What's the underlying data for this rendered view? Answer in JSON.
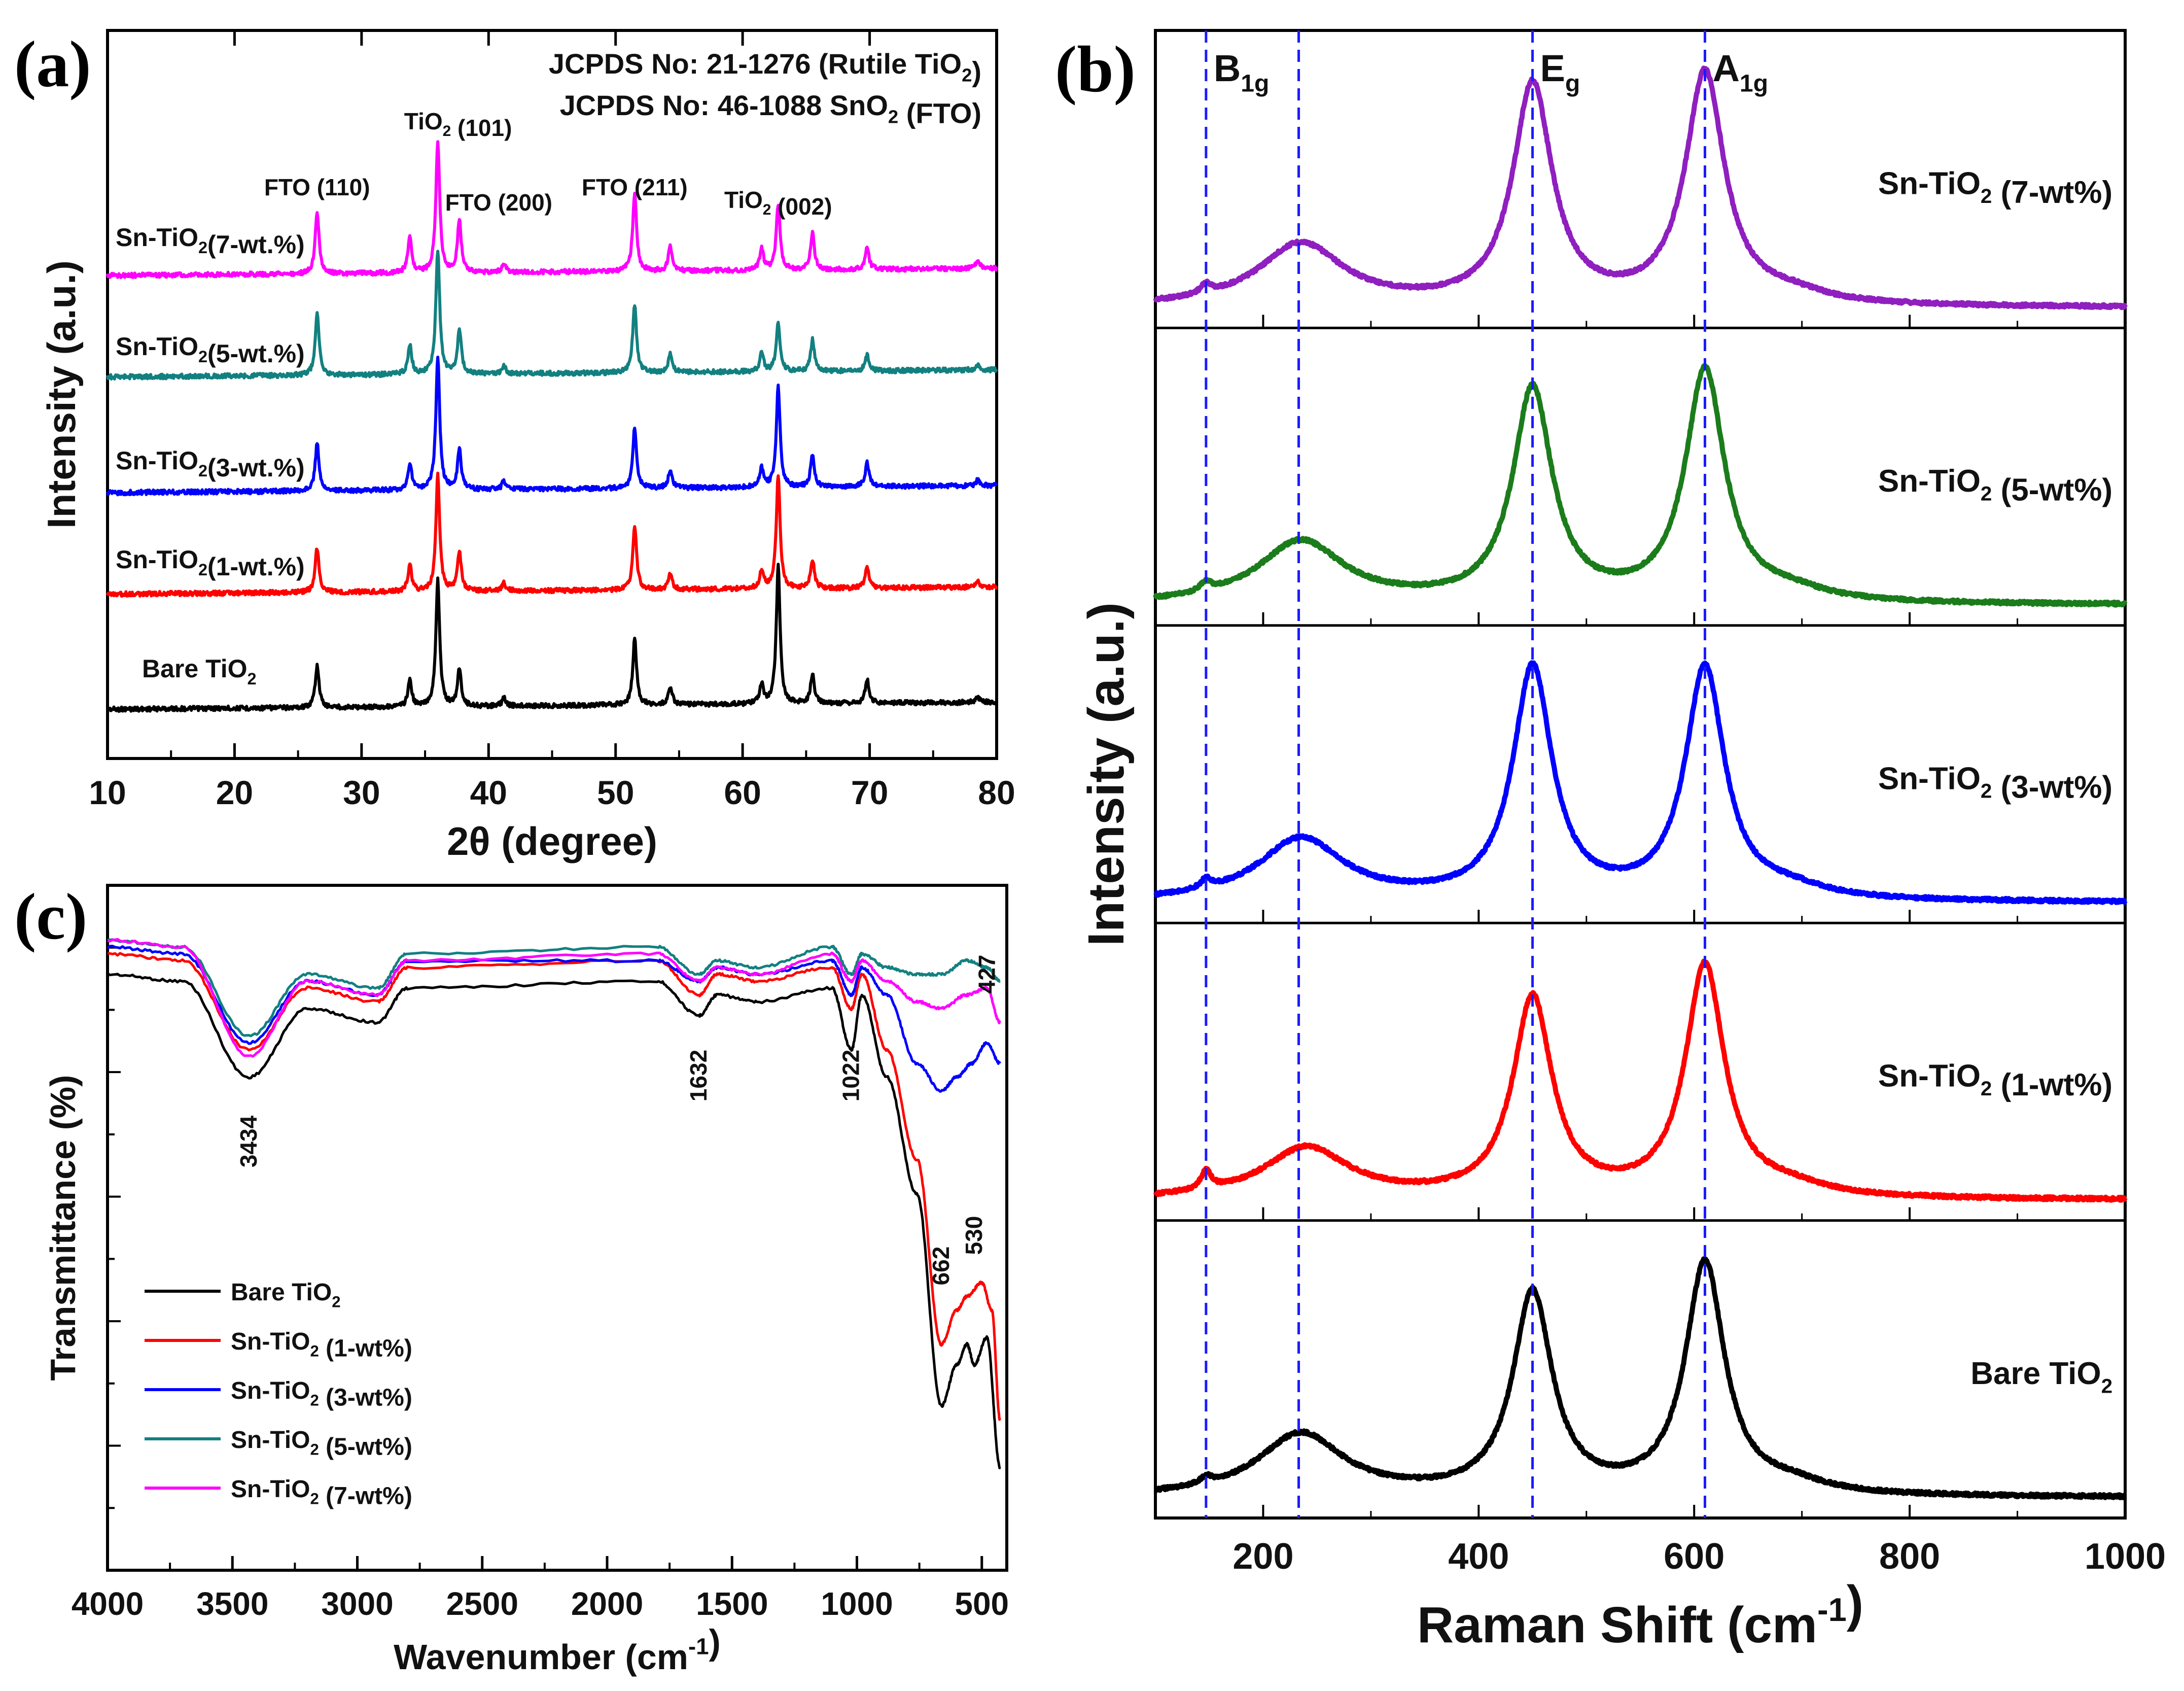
{
  "chart_data": [
    {
      "panel": "(a)",
      "type": "line",
      "xlabel": "2θ (degree)",
      "ylabel": "Intensity (a.u.)",
      "xlim": [
        10,
        80
      ],
      "xticks": [
        10,
        20,
        30,
        40,
        50,
        60,
        70,
        80
      ],
      "yticks_visible": false,
      "header_lines": [
        {
          "main": "JCPDS No: 21-1276 (Rutile TiO",
          "sub": "2",
          "tail": ")"
        },
        {
          "main": "JCPDS No: 46-1088 SnO",
          "sub": "2",
          "tail": " (FTO)"
        }
      ],
      "peak_labels": [
        {
          "main": "FTO (110)",
          "sub": "",
          "tail": "",
          "x": 26.5
        },
        {
          "main": "TiO",
          "sub": "2",
          "tail": " (101)",
          "x": 36.0
        },
        {
          "main": "FTO (200)",
          "sub": "",
          "tail": "",
          "x": 37.8
        },
        {
          "main": "FTO (211)",
          "sub": "",
          "tail": "",
          "x": 51.5
        },
        {
          "main": "TiO",
          "sub": "2",
          "tail": " (002)",
          "x": 62.8
        }
      ],
      "peak_positions": [
        26.5,
        33.8,
        36.0,
        37.7,
        41.2,
        51.5,
        54.3,
        61.5,
        62.8,
        65.5,
        69.8,
        78.5
      ],
      "series": [
        {
          "name": "Bare TiO2",
          "label_main": "Bare TiO",
          "label_sub": "2",
          "label_tail": "",
          "color": "#000000",
          "peak_heights": [
            0.16,
            0.1,
            0.48,
            0.14,
            0.03,
            0.25,
            0.07,
            0.07,
            0.52,
            0.11,
            0.09,
            0.02
          ]
        },
        {
          "name": "Sn-TiO2(1-wt.%)",
          "label_main": "Sn-TiO",
          "label_sub": "2",
          "label_tail": "(1-wt.%)",
          "color": "#ff0000",
          "peak_heights": [
            0.17,
            0.1,
            0.44,
            0.15,
            0.03,
            0.24,
            0.06,
            0.07,
            0.43,
            0.11,
            0.08,
            0.02
          ]
        },
        {
          "name": "Sn-TiO2(3-wt.%)",
          "label_main": "Sn-TiO",
          "label_sub": "2",
          "label_tail": "(3-wt.%)",
          "color": "#0000ff",
          "peak_heights": [
            0.18,
            0.1,
            0.5,
            0.15,
            0.03,
            0.23,
            0.07,
            0.07,
            0.38,
            0.12,
            0.09,
            0.02
          ]
        },
        {
          "name": "Sn-TiO2(5-wt.%)",
          "label_main": "Sn-TiO",
          "label_sub": "2",
          "label_tail": "(5-wt.%)",
          "color": "#138080",
          "peak_heights": [
            0.24,
            0.11,
            0.47,
            0.17,
            0.03,
            0.26,
            0.07,
            0.07,
            0.19,
            0.12,
            0.06,
            0.02
          ]
        },
        {
          "name": "Sn-TiO2(7-wt.%)",
          "label_main": "Sn-TiO",
          "label_sub": "2",
          "label_tail": "(7-wt.%)",
          "color": "#ff00ff",
          "peak_heights": [
            0.24,
            0.14,
            0.5,
            0.2,
            0.03,
            0.3,
            0.09,
            0.08,
            0.25,
            0.14,
            0.08,
            0.03
          ]
        }
      ]
    },
    {
      "panel": "(b)",
      "type": "line",
      "xlabel_main": "Raman Shift (cm",
      "xlabel_sup": "-1",
      "xlabel_tail": ")",
      "ylabel": "Intensity (a.u.)",
      "xlim": [
        100,
        1000
      ],
      "xticks": [
        200,
        400,
        600,
        800,
        1000
      ],
      "yticks_visible": false,
      "mode_lines": [
        147,
        233,
        450,
        610
      ],
      "mode_labels": [
        {
          "main": "B",
          "sub": "1g",
          "x": 147
        },
        {
          "main": "E",
          "sub": "g",
          "x": 450
        },
        {
          "main": "A",
          "sub": "1g",
          "x": 610
        }
      ],
      "stacks": [
        {
          "name": "Sn-TiO2 (7-wt%)",
          "label_main": "Sn-TiO",
          "label_sub": "2",
          "label_tail": " (7-wt%)",
          "color": "#8f1fbf",
          "peaks": [
            {
              "x": 147,
              "h": 0.04
            },
            {
              "x": 235,
              "h": 0.27
            },
            {
              "x": 450,
              "h": 0.95
            },
            {
              "x": 610,
              "h": 1.0
            }
          ]
        },
        {
          "name": "Sn-TiO2 (5-wt%)",
          "label_main": "Sn-TiO",
          "label_sub": "2",
          "label_tail": " (5-wt%)",
          "color": "#1b7c1b",
          "peaks": [
            {
              "x": 147,
              "h": 0.04
            },
            {
              "x": 235,
              "h": 0.27
            },
            {
              "x": 450,
              "h": 0.92
            },
            {
              "x": 610,
              "h": 1.0
            }
          ]
        },
        {
          "name": "Sn-TiO2 (3-wt%)",
          "label_main": "Sn-TiO",
          "label_sub": "2",
          "label_tail": " (3-wt%)",
          "color": "#0000ff",
          "peaks": [
            {
              "x": 147,
              "h": 0.04
            },
            {
              "x": 235,
              "h": 0.27
            },
            {
              "x": 450,
              "h": 1.0
            },
            {
              "x": 610,
              "h": 1.0
            }
          ]
        },
        {
          "name": "Sn-TiO2 (1-wt%)",
          "label_main": "Sn-TiO",
          "label_sub": "2",
          "label_tail": " (1-wt%)",
          "color": "#ff0000",
          "peaks": [
            {
              "x": 147,
              "h": 0.08
            },
            {
              "x": 240,
              "h": 0.22
            },
            {
              "x": 450,
              "h": 0.86
            },
            {
              "x": 610,
              "h": 1.0
            }
          ]
        },
        {
          "name": "Bare TiO2",
          "label_main": "Bare TiO",
          "label_sub": "2",
          "label_tail": "",
          "color": "#000000",
          "peaks": [
            {
              "x": 147,
              "h": 0.03
            },
            {
              "x": 235,
              "h": 0.27
            },
            {
              "x": 450,
              "h": 0.87
            },
            {
              "x": 610,
              "h": 1.0
            }
          ]
        }
      ]
    },
    {
      "panel": "(c)",
      "type": "line",
      "xlabel_main": "Wavenumber (cm",
      "xlabel_sup": "-1",
      "xlabel_tail": ")",
      "ylabel": "Transmittance (%)",
      "xlim": [
        4000,
        400
      ],
      "xticks": [
        4000,
        3500,
        3000,
        2500,
        2000,
        1500,
        1000,
        500
      ],
      "yticks_visible": false,
      "band_labels": [
        "3434",
        "1632",
        "1022",
        "662",
        "530",
        "427"
      ],
      "legend": [
        {
          "main": "Bare TiO",
          "sub": "2",
          "tail": "",
          "color": "#000000"
        },
        {
          "main": "Sn-TiO",
          "sub": "2",
          "tail": " (1-wt%)",
          "color": "#ff0000"
        },
        {
          "main": "Sn-TiO",
          "sub": "2",
          "tail": " (3-wt%)",
          "color": "#0000ff"
        },
        {
          "main": "Sn-TiO",
          "sub": "2",
          "tail": " (5-wt%)",
          "color": "#138080"
        },
        {
          "main": "Sn-TiO",
          "sub": "2",
          "tail": " (7-wt%)",
          "color": "#ff00ff"
        }
      ],
      "series": [
        {
          "name": "Bare TiO2",
          "color": "#000000",
          "points": [
            [
              4000,
              0.87
            ],
            [
              3700,
              0.86
            ],
            [
              3434,
              0.72
            ],
            [
              3200,
              0.82
            ],
            [
              2920,
              0.8
            ],
            [
              2800,
              0.85
            ],
            [
              1800,
              0.86
            ],
            [
              1632,
              0.81
            ],
            [
              1560,
              0.84
            ],
            [
              1400,
              0.83
            ],
            [
              1100,
              0.85
            ],
            [
              1022,
              0.76
            ],
            [
              980,
              0.84
            ],
            [
              880,
              0.72
            ],
            [
              760,
              0.55
            ],
            [
              662,
              0.24
            ],
            [
              600,
              0.3
            ],
            [
              560,
              0.33
            ],
            [
              530,
              0.3
            ],
            [
              480,
              0.34
            ],
            [
              427,
              0.15
            ]
          ]
        },
        {
          "name": "Sn-TiO2 (1-wt%)",
          "color": "#ff0000",
          "points": [
            [
              4000,
              0.9
            ],
            [
              3700,
              0.89
            ],
            [
              3434,
              0.76
            ],
            [
              3200,
              0.85
            ],
            [
              2920,
              0.83
            ],
            [
              2800,
              0.88
            ],
            [
              1800,
              0.89
            ],
            [
              1632,
              0.84
            ],
            [
              1560,
              0.87
            ],
            [
              1400,
              0.86
            ],
            [
              1100,
              0.88
            ],
            [
              1022,
              0.82
            ],
            [
              980,
              0.87
            ],
            [
              880,
              0.76
            ],
            [
              760,
              0.6
            ],
            [
              662,
              0.33
            ],
            [
              600,
              0.38
            ],
            [
              560,
              0.4
            ],
            [
              500,
              0.42
            ],
            [
              460,
              0.38
            ],
            [
              427,
              0.22
            ]
          ]
        },
        {
          "name": "Sn-TiO2 (3-wt%)",
          "color": "#0000ff",
          "points": [
            [
              4000,
              0.91
            ],
            [
              3700,
              0.9
            ],
            [
              3434,
              0.77
            ],
            [
              3200,
              0.86
            ],
            [
              2920,
              0.84
            ],
            [
              2800,
              0.89
            ],
            [
              1800,
              0.89
            ],
            [
              1632,
              0.86
            ],
            [
              1560,
              0.88
            ],
            [
              1400,
              0.87
            ],
            [
              1100,
              0.89
            ],
            [
              1022,
              0.84
            ],
            [
              980,
              0.88
            ],
            [
              880,
              0.84
            ],
            [
              760,
              0.74
            ],
            [
              662,
              0.7
            ],
            [
              600,
              0.72
            ],
            [
              540,
              0.74
            ],
            [
              480,
              0.77
            ],
            [
              427,
              0.74
            ]
          ]
        },
        {
          "name": "Sn-TiO2 (5-wt%)",
          "color": "#138080",
          "points": [
            [
              4000,
              0.92
            ],
            [
              3700,
              0.91
            ],
            [
              3434,
              0.78
            ],
            [
              3200,
              0.87
            ],
            [
              2920,
              0.85
            ],
            [
              2800,
              0.9
            ],
            [
              1800,
              0.91
            ],
            [
              1632,
              0.87
            ],
            [
              1560,
              0.89
            ],
            [
              1400,
              0.88
            ],
            [
              1100,
              0.91
            ],
            [
              1022,
              0.87
            ],
            [
              980,
              0.9
            ],
            [
              880,
              0.88
            ],
            [
              760,
              0.87
            ],
            [
              662,
              0.87
            ],
            [
              560,
              0.89
            ],
            [
              480,
              0.88
            ],
            [
              427,
              0.86
            ]
          ]
        },
        {
          "name": "Sn-TiO2 (7-wt%)",
          "color": "#ff00ff",
          "points": [
            [
              4000,
              0.92
            ],
            [
              3700,
              0.91
            ],
            [
              3434,
              0.75
            ],
            [
              3200,
              0.86
            ],
            [
              2920,
              0.84
            ],
            [
              2800,
              0.89
            ],
            [
              1800,
              0.9
            ],
            [
              1632,
              0.86
            ],
            [
              1560,
              0.88
            ],
            [
              1400,
              0.87
            ],
            [
              1100,
              0.9
            ],
            [
              1022,
              0.86
            ],
            [
              980,
              0.89
            ],
            [
              880,
              0.86
            ],
            [
              760,
              0.83
            ],
            [
              662,
              0.82
            ],
            [
              560,
              0.84
            ],
            [
              480,
              0.85
            ],
            [
              427,
              0.8
            ]
          ]
        }
      ]
    }
  ]
}
